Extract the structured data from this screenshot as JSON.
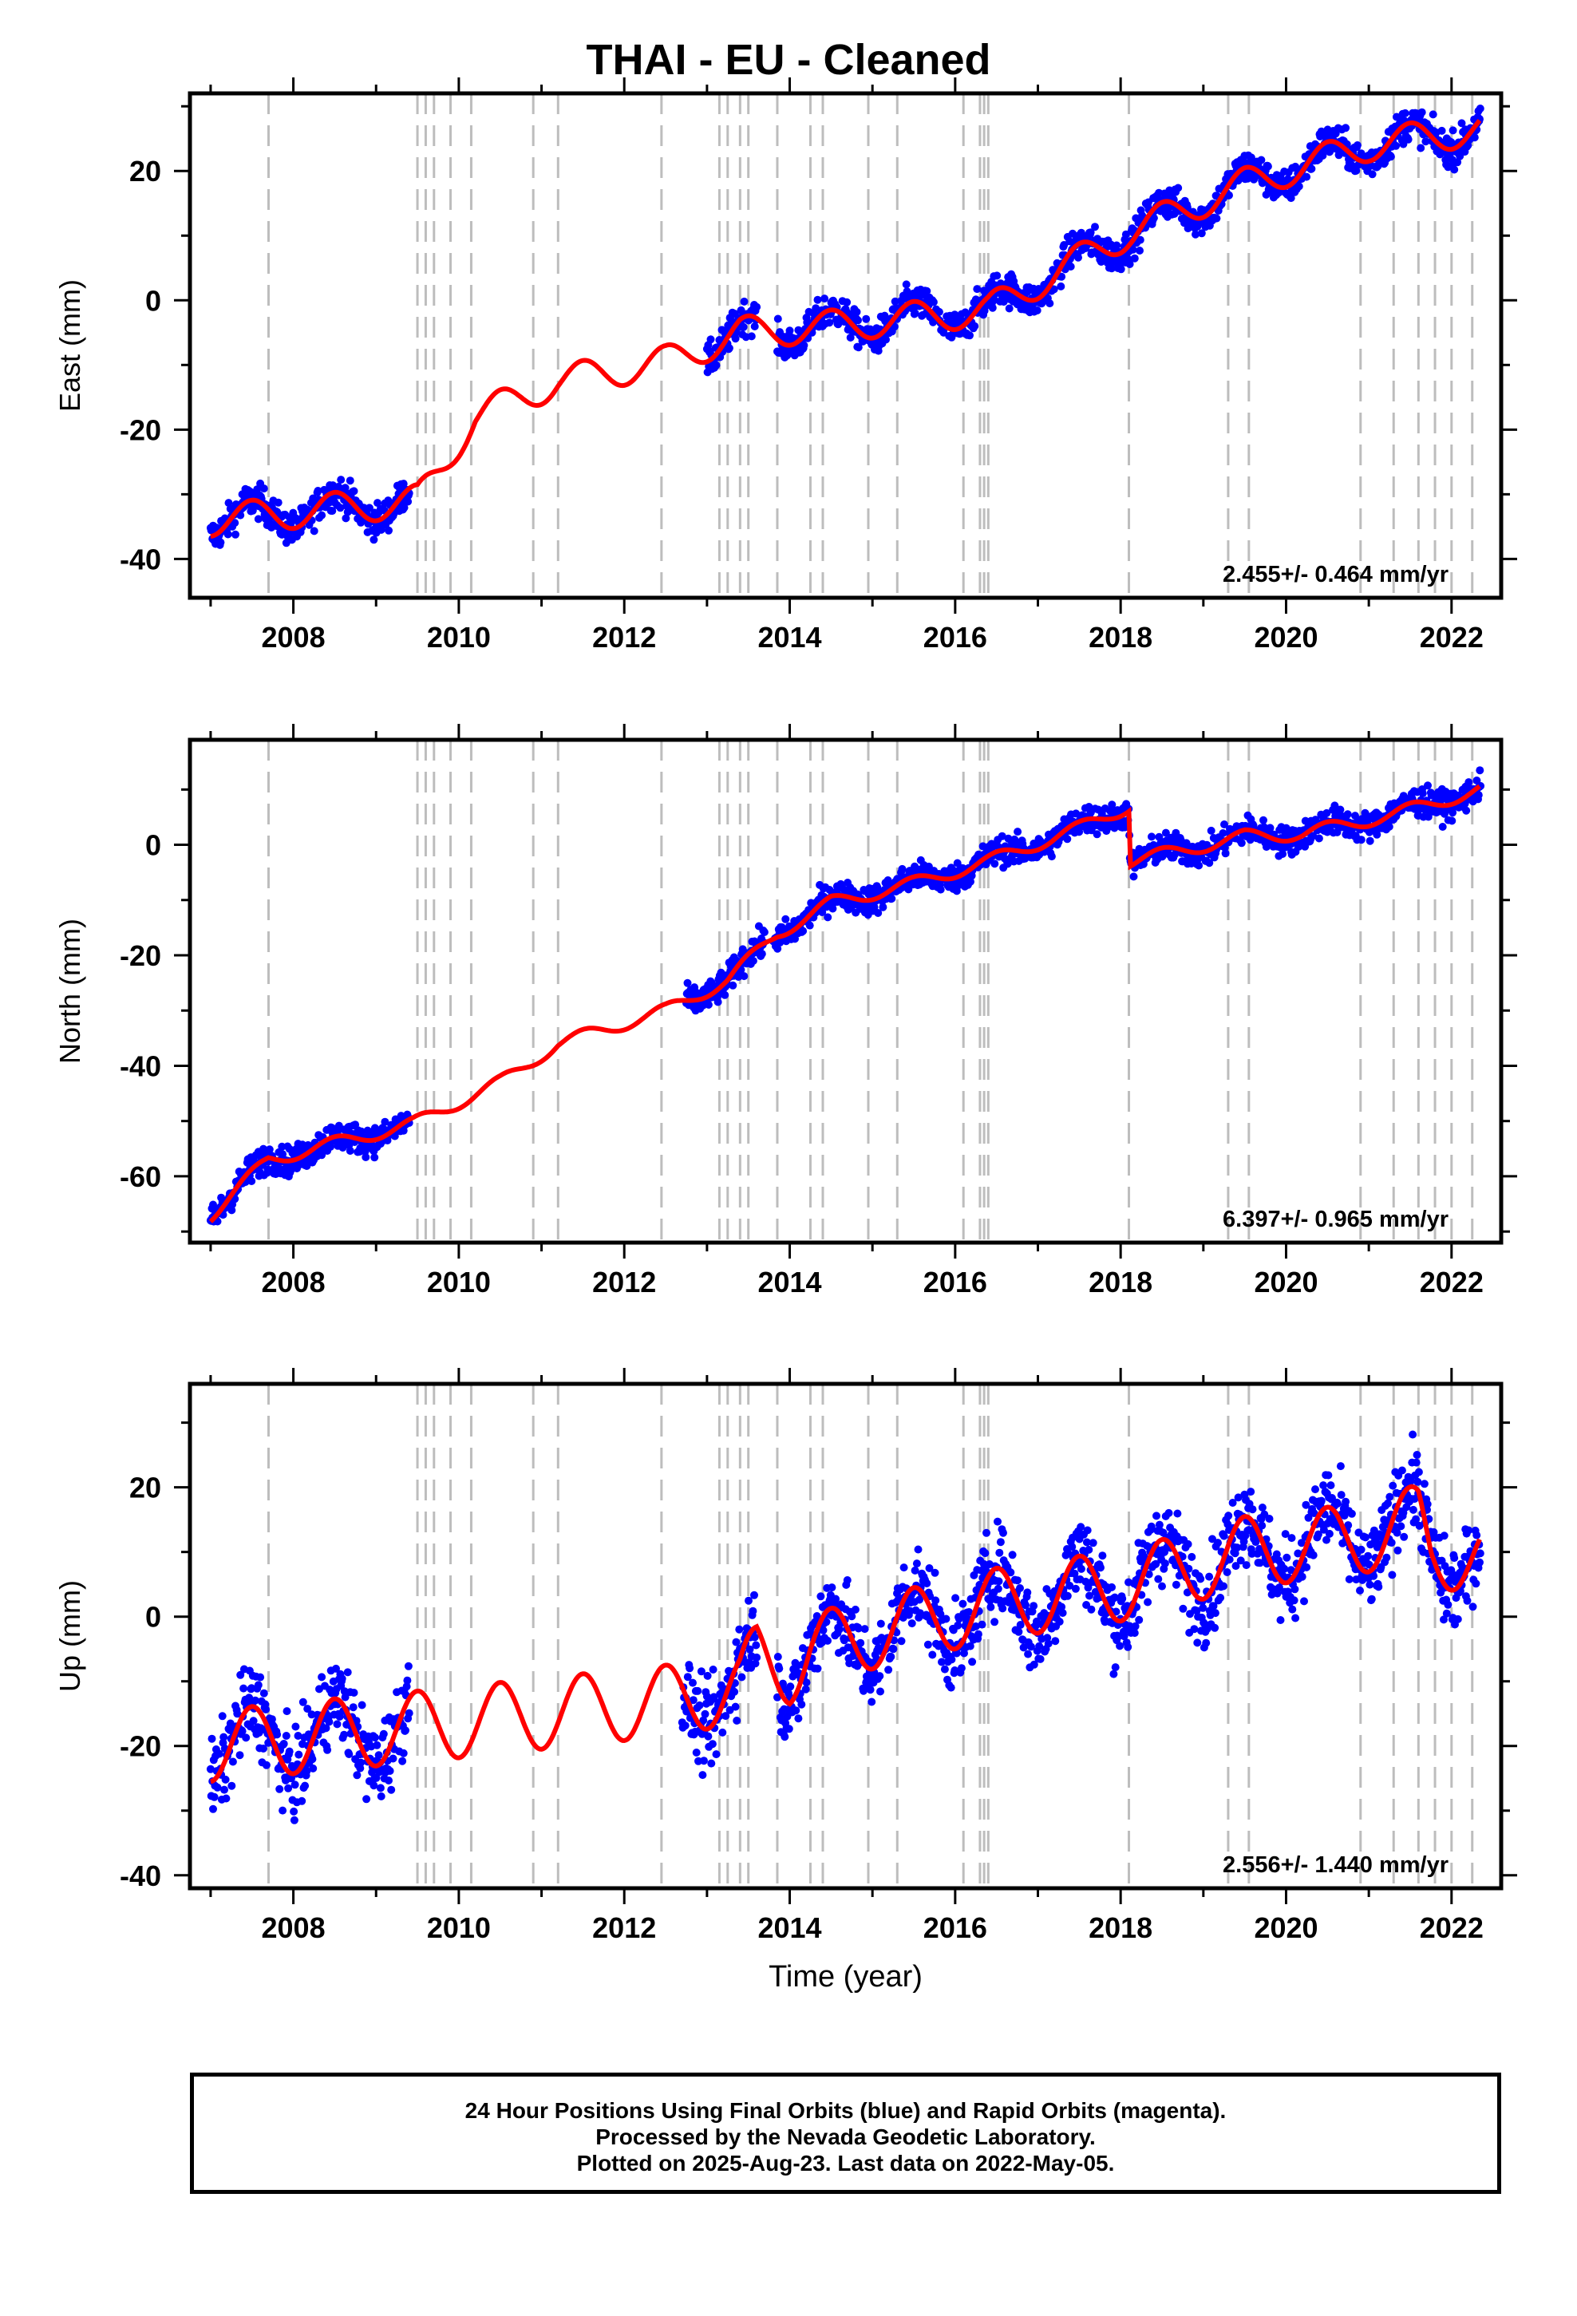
{
  "title": "THAI  - EU - Cleaned",
  "xlabel": "Time (year)",
  "colors": {
    "points": "#0000ff",
    "model": "#ff0000",
    "events": "#bdbdbd",
    "axes": "#000000"
  },
  "footer": {
    "line1": "24 Hour Positions Using Final Orbits (blue) and Rapid Orbits (magenta).",
    "line2": "Processed by the Nevada Geodetic Laboratory.",
    "line3": "Plotted on 2025-Aug-23. Last data on 2022-May-05."
  },
  "chart_data": [
    {
      "type": "scatter",
      "name": "east",
      "ylabel": "East (mm)",
      "xlim": [
        2006.75,
        2022.6
      ],
      "ylim": [
        -46,
        32
      ],
      "yticks": [
        -40,
        -20,
        0,
        20
      ],
      "xticks": [
        2008,
        2010,
        2012,
        2014,
        2016,
        2018,
        2020,
        2022
      ],
      "rate": "2.455+/- 0.464 mm/yr",
      "events": [
        2007.7,
        2009.5,
        2009.6,
        2009.7,
        2009.9,
        2010.15,
        2010.9,
        2011.2,
        2012.45,
        2013.15,
        2013.25,
        2013.4,
        2013.5,
        2013.85,
        2014.25,
        2014.4,
        2014.95,
        2015.3,
        2016.1,
        2016.3,
        2016.35,
        2016.4,
        2018.1,
        2019.3,
        2019.55,
        2020.9,
        2021.3,
        2021.6,
        2021.8,
        2022.0,
        2022.25
      ],
      "data_segments": [
        [
          2007.0,
          2009.4
        ],
        [
          2013.0,
          2013.6
        ],
        [
          2013.85,
          2022.35
        ]
      ],
      "model": {
        "start": -34,
        "steps": [
          [
            2007.0,
            -34.0
          ],
          [
            2009.5,
            -31.0
          ],
          [
            2010.2,
            -18.0
          ],
          [
            2011.2,
            -12.5
          ],
          [
            2012.5,
            -9.5
          ],
          [
            2013.4,
            -5.0
          ],
          [
            2014.5,
            -4.0
          ],
          [
            2016.4,
            -1.5
          ],
          [
            2018.1,
            10.5
          ],
          [
            2019.5,
            18.0
          ],
          [
            2021.0,
            24.0
          ],
          [
            2022.35,
            26.5
          ]
        ],
        "amplitude": 2.5
      }
    },
    {
      "type": "scatter",
      "name": "north",
      "ylabel": "North (mm)",
      "xlim": [
        2006.75,
        2022.6
      ],
      "ylim": [
        -72,
        19
      ],
      "yticks": [
        -60,
        -40,
        -20,
        0
      ],
      "xticks": [
        2008,
        2010,
        2012,
        2014,
        2016,
        2018,
        2020,
        2022
      ],
      "rate": "6.397+/- 0.965 mm/yr",
      "events": [
        2007.7,
        2009.5,
        2009.6,
        2009.7,
        2009.9,
        2010.15,
        2010.9,
        2011.2,
        2012.45,
        2013.15,
        2013.25,
        2013.4,
        2013.5,
        2013.85,
        2014.25,
        2014.4,
        2014.95,
        2015.3,
        2016.1,
        2016.3,
        2016.35,
        2016.4,
        2018.1,
        2019.3,
        2019.55,
        2020.9,
        2021.3,
        2021.6,
        2021.8,
        2022.0,
        2022.25
      ],
      "data_segments": [
        [
          2007.0,
          2009.4
        ],
        [
          2012.75,
          2013.7
        ],
        [
          2013.8,
          2022.35
        ]
      ],
      "model": {
        "start": -67,
        "steps": [
          [
            2007.0,
            -67.0
          ],
          [
            2007.7,
            -57.0
          ],
          [
            2009.45,
            -50.5
          ],
          [
            2010.5,
            -43.0
          ],
          [
            2011.2,
            -36.0
          ],
          [
            2012.5,
            -30.0
          ],
          [
            2013.25,
            -24.5
          ],
          [
            2013.85,
            -16.0
          ],
          [
            2014.5,
            -10.5
          ],
          [
            2015.5,
            -7.0
          ],
          [
            2016.4,
            -3.0
          ],
          [
            2017.5,
            3.0
          ],
          [
            2018.1,
            7.0
          ],
          [
            2018.12,
            -3.0
          ],
          [
            2019.5,
            1.5
          ],
          [
            2020.2,
            2.0
          ],
          [
            2021.3,
            5.5
          ],
          [
            2022.35,
            10.0
          ]
        ],
        "amplitude": 1.2
      }
    },
    {
      "type": "scatter",
      "name": "up",
      "ylabel": "Up (mm)",
      "xlim": [
        2006.75,
        2022.6
      ],
      "ylim": [
        -42,
        36
      ],
      "yticks": [
        -40,
        -20,
        0,
        20
      ],
      "xticks": [
        2008,
        2010,
        2012,
        2014,
        2016,
        2018,
        2020,
        2022
      ],
      "rate": "2.556+/- 1.440 mm/yr",
      "events": [
        2007.7,
        2009.5,
        2009.6,
        2009.7,
        2009.9,
        2010.15,
        2010.9,
        2011.2,
        2012.45,
        2013.15,
        2013.25,
        2013.4,
        2013.5,
        2013.85,
        2014.25,
        2014.4,
        2014.95,
        2015.3,
        2016.1,
        2016.3,
        2016.35,
        2016.4,
        2018.1,
        2019.3,
        2019.55,
        2020.9,
        2021.3,
        2021.6,
        2021.8,
        2022.0,
        2022.25
      ],
      "data_segments": [
        [
          2007.0,
          2009.4
        ],
        [
          2012.7,
          2013.6
        ],
        [
          2013.85,
          2022.35
        ]
      ],
      "model": {
        "start": -20,
        "steps": [
          [
            2007.0,
            -20.0
          ],
          [
            2009.5,
            -17.0
          ],
          [
            2012.5,
            -13.0
          ],
          [
            2013.4,
            -11.0
          ],
          [
            2013.6,
            -6.0
          ],
          [
            2014.0,
            -8.0
          ],
          [
            2014.25,
            -5.0
          ],
          [
            2015.5,
            -1.0
          ],
          [
            2016.5,
            2.0
          ],
          [
            2018.1,
            5.0
          ],
          [
            2019.5,
            10.0
          ],
          [
            2020.9,
            12.0
          ],
          [
            2021.6,
            15.0
          ],
          [
            2021.75,
            10.0
          ],
          [
            2022.35,
            9.0
          ]
        ],
        "amplitude": 5.5
      }
    }
  ]
}
